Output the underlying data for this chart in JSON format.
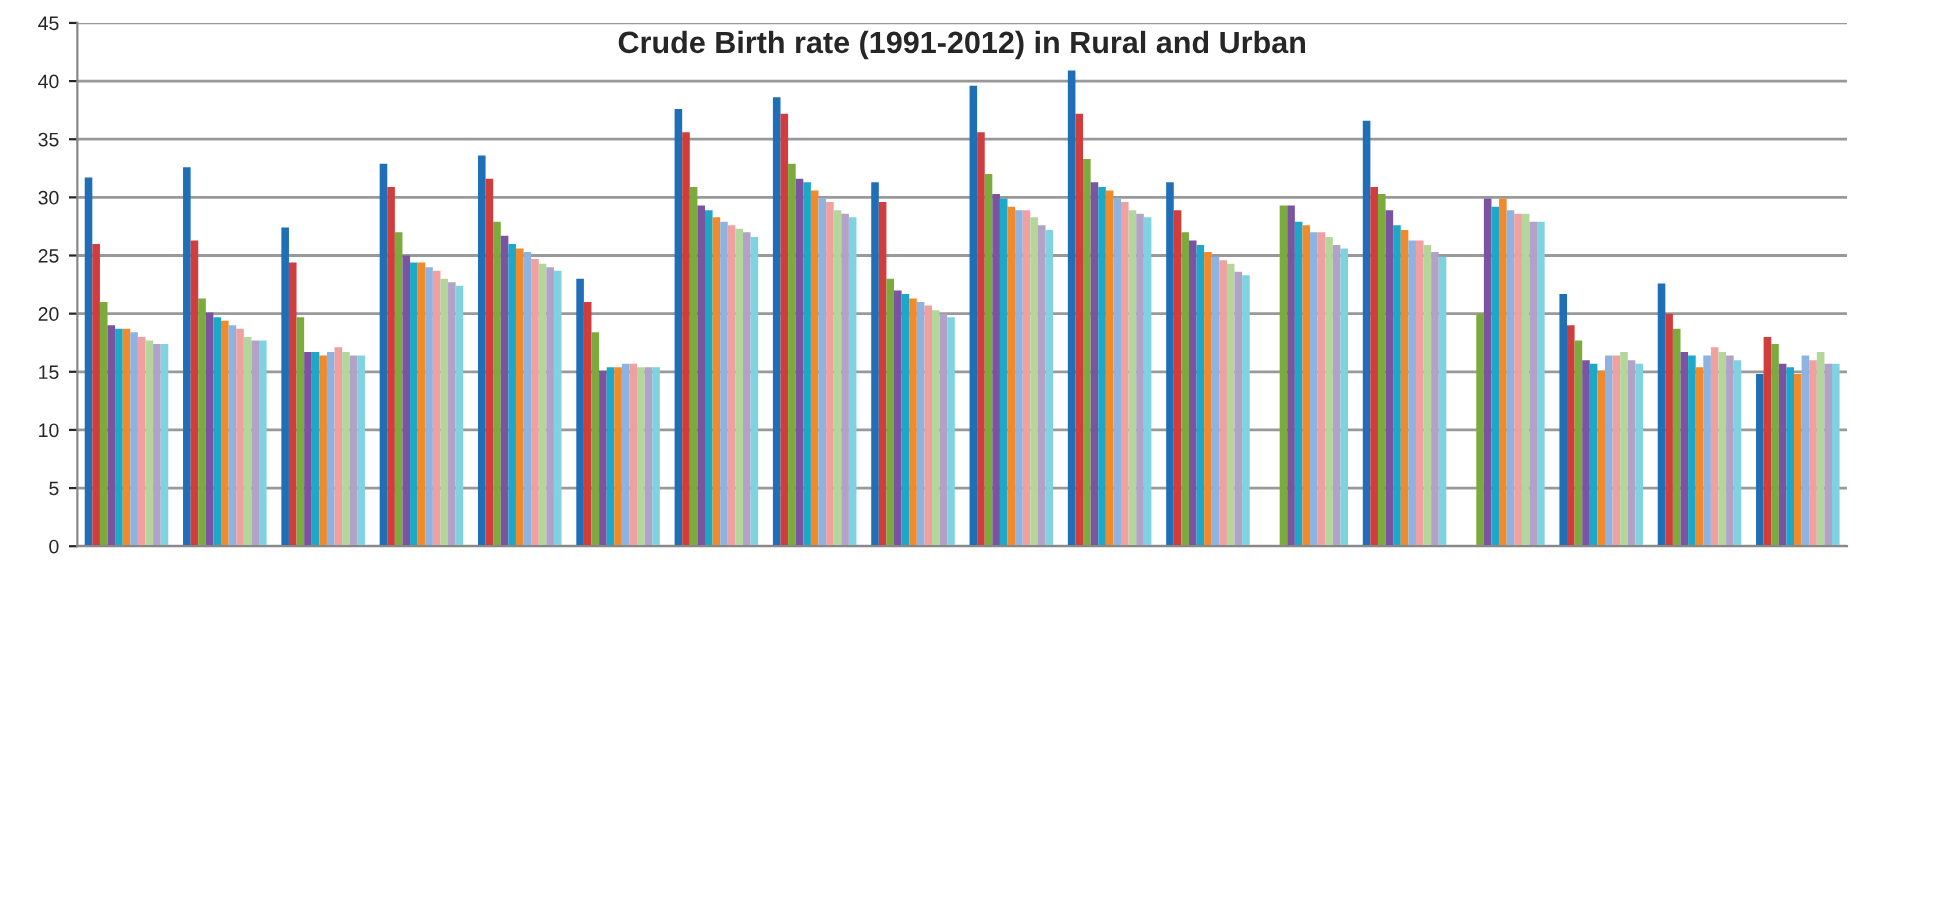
{
  "chart_data": {
    "type": "bar",
    "title": "Crude Birth rate (1991-2012) in Rural and Urban",
    "categories": [
      null,
      null,
      null,
      null,
      null,
      null,
      null,
      null,
      null,
      null,
      null,
      null,
      null,
      null,
      null,
      null,
      null,
      null
    ],
    "series": [
      {
        "color": "#1f6fb8",
        "values": [
          31.7,
          32.6,
          27.4,
          32.9,
          33.6,
          23.0,
          37.6,
          38.6,
          31.3,
          39.6,
          40.9,
          31.3,
          null,
          36.6,
          null,
          21.7,
          22.6,
          14.8
        ]
      },
      {
        "color": "#d13c3c",
        "values": [
          26.0,
          26.3,
          24.4,
          30.9,
          31.6,
          21.0,
          35.6,
          37.2,
          29.6,
          35.6,
          37.2,
          28.9,
          null,
          30.9,
          null,
          19.0,
          20.0,
          18.0
        ]
      },
      {
        "color": "#7aab3c",
        "values": [
          21.0,
          21.3,
          19.7,
          27.0,
          27.9,
          18.4,
          30.9,
          32.9,
          23.0,
          32.0,
          33.3,
          27.0,
          29.3,
          30.3,
          20.0,
          17.7,
          18.7,
          17.4
        ]
      },
      {
        "color": "#7a54a0",
        "values": [
          19.0,
          20.1,
          16.7,
          25.0,
          26.7,
          15.1,
          29.3,
          31.6,
          22.0,
          30.3,
          31.3,
          26.3,
          29.3,
          28.9,
          29.9,
          16.0,
          16.7,
          15.7
        ]
      },
      {
        "color": "#1ca8c8",
        "values": [
          18.7,
          19.7,
          16.7,
          24.4,
          26.0,
          15.4,
          28.9,
          31.3,
          21.7,
          29.9,
          30.9,
          25.9,
          27.9,
          27.6,
          29.2,
          15.7,
          16.4,
          15.4
        ]
      },
      {
        "color": "#f08a2b",
        "values": [
          18.7,
          19.4,
          16.4,
          24.4,
          25.6,
          15.4,
          28.3,
          30.6,
          21.3,
          29.2,
          30.6,
          25.3,
          27.6,
          27.2,
          29.9,
          15.1,
          15.4,
          14.8
        ]
      },
      {
        "color": "#8db3e2",
        "values": [
          18.4,
          19.0,
          16.7,
          24.0,
          25.3,
          15.7,
          27.9,
          29.9,
          21.0,
          28.9,
          29.9,
          24.9,
          27.0,
          26.3,
          28.9,
          16.4,
          16.4,
          16.4
        ]
      },
      {
        "color": "#f0a0a0",
        "values": [
          18.0,
          18.7,
          17.1,
          23.7,
          24.7,
          15.7,
          27.6,
          29.6,
          20.7,
          28.9,
          29.6,
          24.6,
          27.0,
          26.3,
          28.6,
          16.4,
          17.1,
          16.0
        ]
      },
      {
        "color": "#b3d69b",
        "values": [
          17.7,
          18.0,
          16.7,
          23.0,
          24.3,
          15.4,
          27.3,
          28.9,
          20.3,
          28.3,
          28.9,
          24.3,
          26.6,
          25.9,
          28.6,
          16.7,
          16.7,
          16.7
        ]
      },
      {
        "color": "#b3a2c7",
        "values": [
          17.4,
          17.7,
          16.4,
          22.7,
          24.0,
          15.4,
          27.0,
          28.6,
          20.0,
          27.6,
          28.6,
          23.6,
          25.9,
          25.3,
          27.9,
          16.0,
          16.4,
          15.7
        ]
      },
      {
        "color": "#7fd3e0",
        "values": [
          17.4,
          17.7,
          16.4,
          22.4,
          23.7,
          15.4,
          26.6,
          28.3,
          19.7,
          27.2,
          28.3,
          23.3,
          25.6,
          24.9,
          27.9,
          15.7,
          16.0,
          15.7
        ]
      }
    ],
    "ylim": [
      0,
      45
    ],
    "yticks": [
      0,
      5,
      10,
      15,
      20,
      25,
      30,
      35,
      40,
      45
    ],
    "grid": "y",
    "tick_labels": "y"
  }
}
